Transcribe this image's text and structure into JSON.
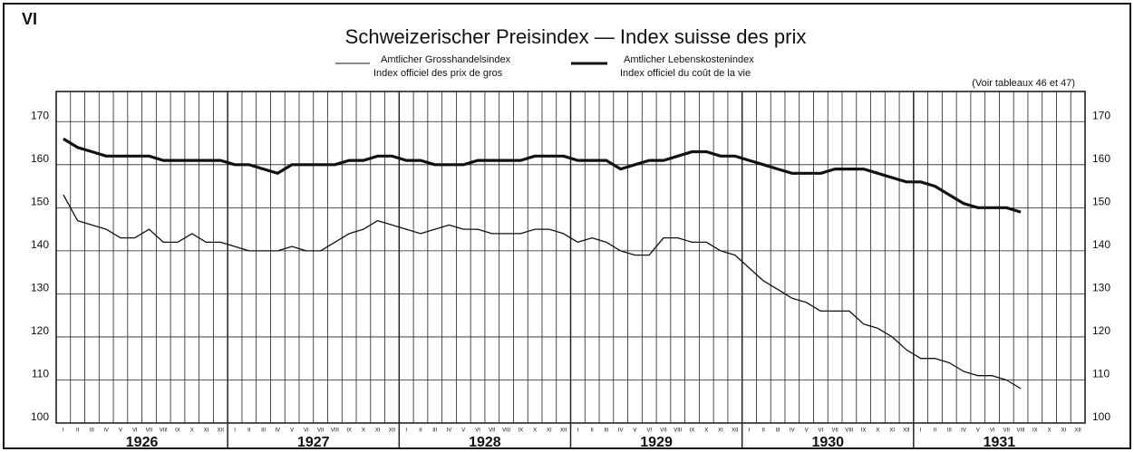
{
  "chart_data": {
    "type": "line",
    "label": "VI",
    "title": "Schweizerischer Preisindex — Index suisse des prix",
    "note": "(Voir tableaux 46 et 47)",
    "categories": [
      "I",
      "II",
      "III",
      "IV",
      "V",
      "VI",
      "VII",
      "VIII",
      "IX",
      "X",
      "XI",
      "XII",
      "I",
      "II",
      "III",
      "IV",
      "V",
      "VI",
      "VII",
      "VIII",
      "IX",
      "X",
      "XI",
      "XII",
      "I",
      "II",
      "III",
      "IV",
      "V",
      "VI",
      "VII",
      "VIII",
      "IX",
      "X",
      "XI",
      "XII",
      "I",
      "II",
      "III",
      "IV",
      "V",
      "VI",
      "VII",
      "VIII",
      "IX",
      "X",
      "XI",
      "XII",
      "I",
      "II",
      "III",
      "IV",
      "V",
      "VI",
      "VII",
      "VIII",
      "IX",
      "X",
      "XI",
      "XII",
      "I",
      "II",
      "III",
      "IV",
      "V",
      "VI",
      "VII",
      "VIII",
      "IX",
      "X",
      "XI",
      "XII"
    ],
    "years": [
      "1926",
      "1927",
      "1928",
      "1929",
      "1930",
      "1931"
    ],
    "series": [
      {
        "name": "Amtlicher Grosshandelsindex",
        "name_fr": "Index officiel des prix de gros",
        "color": "#111111",
        "values": [
          153,
          147,
          146,
          145,
          143,
          143,
          145,
          142,
          142,
          144,
          142,
          142,
          141,
          140,
          140,
          140,
          141,
          140,
          140,
          142,
          144,
          145,
          147,
          146,
          145,
          144,
          145,
          146,
          145,
          145,
          144,
          144,
          144,
          145,
          145,
          144,
          142,
          143,
          142,
          140,
          139,
          139,
          143,
          143,
          142,
          142,
          140,
          139,
          136,
          133,
          131,
          129,
          128,
          126,
          126,
          126,
          123,
          122,
          120,
          117,
          115,
          115,
          114,
          112,
          111,
          111,
          110,
          108,
          null,
          null,
          null,
          null
        ]
      },
      {
        "name": "Amtlicher Lebenskostenindex",
        "name_fr": "Index officiel du coût de la vie",
        "color": "#111111",
        "values": [
          166,
          164,
          163,
          162,
          162,
          162,
          162,
          161,
          161,
          161,
          161,
          161,
          160,
          160,
          159,
          158,
          160,
          160,
          160,
          160,
          161,
          161,
          162,
          162,
          161,
          161,
          160,
          160,
          160,
          161,
          161,
          161,
          161,
          162,
          162,
          162,
          161,
          161,
          161,
          159,
          160,
          161,
          161,
          162,
          163,
          163,
          162,
          162,
          161,
          160,
          159,
          158,
          158,
          158,
          159,
          159,
          159,
          158,
          157,
          156,
          156,
          155,
          153,
          151,
          150,
          150,
          150,
          149,
          null,
          null,
          null,
          null
        ]
      }
    ],
    "ylim": [
      100,
      177
    ],
    "yticks": [
      100,
      110,
      120,
      130,
      140,
      150,
      160,
      170
    ],
    "grid": true
  }
}
